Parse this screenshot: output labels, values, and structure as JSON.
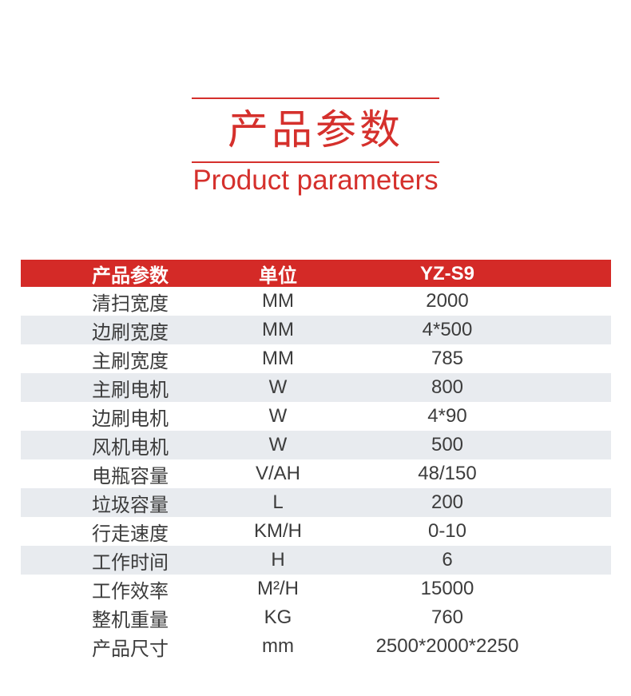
{
  "title": {
    "zh": "产品参数",
    "en": "Product parameters"
  },
  "colors": {
    "accent_red": "#d5302c",
    "header_red": "#d42a27",
    "stripe_gray": "#e8ebef",
    "text_dark": "#3c3c3c"
  },
  "table": {
    "headers": [
      "产品参数",
      "单位",
      "YZ-S9"
    ],
    "rows": [
      {
        "name": "清扫宽度",
        "unit": "MM",
        "value": "2000",
        "shaded": false
      },
      {
        "name": "边刷宽度",
        "unit": "MM",
        "value": "4*500",
        "shaded": true
      },
      {
        "name": "主刷宽度",
        "unit": "MM",
        "value": "785",
        "shaded": false
      },
      {
        "name": "主刷电机",
        "unit": "W",
        "value": "800",
        "shaded": true
      },
      {
        "name": "边刷电机",
        "unit": "W",
        "value": "4*90",
        "shaded": false
      },
      {
        "name": "风机电机",
        "unit": "W",
        "value": "500",
        "shaded": true
      },
      {
        "name": "电瓶容量",
        "unit": "V/AH",
        "value": "48/150",
        "shaded": false
      },
      {
        "name": "垃圾容量",
        "unit": "L",
        "value": "200",
        "shaded": true
      },
      {
        "name": "行走速度",
        "unit": "KM/H",
        "value": "0-10",
        "shaded": false
      },
      {
        "name": "工作时间",
        "unit": "H",
        "value": "6",
        "shaded": true
      },
      {
        "name": "工作效率",
        "unit": "M²/H",
        "value": "15000",
        "shaded": false
      },
      {
        "name": "整机重量",
        "unit": "KG",
        "value": "760",
        "shaded": false
      },
      {
        "name": "产品尺寸",
        "unit": "mm",
        "value": "2500*2000*2250",
        "shaded": false
      }
    ]
  }
}
